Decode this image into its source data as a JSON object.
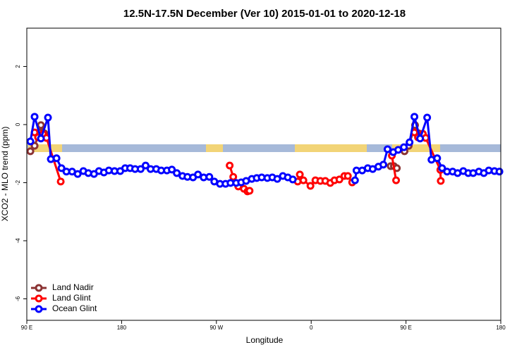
{
  "chart_data": {
    "type": "line",
    "title": "12.5N-17.5N December (Ver 10)   2015-01-01 to 2020-12-18",
    "xlabel": "Longitude",
    "ylabel": "XCO2 - MLO trend (ppm)",
    "xlim": [
      90,
      540
    ],
    "ylim": [
      -6.74,
      3.32
    ],
    "xticks": [
      {
        "value": 90,
        "label": "90 E"
      },
      180,
      {
        "value": 270,
        "label": "90 W"
      },
      {
        "value": 360,
        "label": "0"
      },
      {
        "value": 450,
        "label": "90 E"
      },
      {
        "value": 540,
        "label": "180"
      }
    ],
    "yticks": [
      -6,
      -4,
      -2,
      0,
      2
    ],
    "legend": "bottom-left",
    "series": [
      {
        "name": "Land Nadir",
        "color": "#8b3333",
        "x": [
          93.4,
          97.4,
          102,
          103.4,
          106.7,
          null,
          435.5,
          438.5,
          441.3,
          null,
          448.6,
          452.6,
          458.6,
          462
        ],
        "values": [
          -0.92,
          -0.73,
          -0.27,
          -0.02,
          -0.3,
          null,
          -1.43,
          -1.43,
          -1.5,
          null,
          -0.92,
          -0.73,
          -0.02,
          -0.3
        ]
      },
      {
        "name": "Land Glint",
        "color": "#ff0000",
        "x": [
          97.4,
          100.7,
          105.4,
          108.7,
          122.2,
          null,
          282.6,
          286,
          290.8,
          296.1,
          299.5,
          301.5,
          null,
          347.2,
          349.2,
          352.6,
          359.3,
          364,
          368.7,
          373.4,
          378.1,
          382.1,
          386.8,
          391.5,
          394.8,
          398.9,
          null,
          436.6,
          440.6,
          null,
          458,
          461.4,
          466,
          468.7,
          482.6,
          483
        ],
        "values": [
          -0.27,
          -0.44,
          -0.32,
          -0.46,
          -1.96,
          null,
          -1.41,
          -1.8,
          -2.13,
          -2.21,
          -2.3,
          -2.28,
          null,
          -1.96,
          -1.72,
          -1.92,
          -2.11,
          -1.92,
          -1.94,
          -1.94,
          -2.01,
          -1.92,
          -1.89,
          -1.77,
          -1.77,
          -1.99,
          null,
          -1.07,
          -1.92,
          null,
          -0.27,
          -0.44,
          -0.32,
          -0.46,
          -1.56,
          -1.94
        ]
      },
      {
        "name": "Ocean Glint",
        "color": "#0000ff",
        "x": [
          93.4,
          97.4,
          103.4,
          110.1,
          112.8,
          118.2,
          122.9,
          127.6,
          133,
          138.3,
          143.7,
          148.4,
          153.8,
          158.5,
          163.2,
          167.9,
          173.3,
          178.7,
          183.4,
          188.1,
          192.8,
          198.1,
          202.8,
          207.5,
          212.9,
          217.6,
          223,
          227.7,
          232.4,
          237.8,
          242.5,
          247.8,
          252.5,
          257.9,
          263.3,
          268,
          273.4,
          278.7,
          283.4,
          288.8,
          293.5,
          298.2,
          303.6,
          308.3,
          313,
          318.4,
          323.1,
          327.8,
          333.1,
          337.8,
          342.5,
          null,
          401.6,
          403,
          408.4,
          413.7,
          418.4,
          423.8,
          428.5,
          432.5,
          437.9,
          442.6,
          448,
          453.4,
          458,
          463.4,
          470.1,
          474.2,
          479.6,
          484.3,
          489,
          494.3,
          499,
          504.4,
          509.1,
          513.8,
          519.2,
          523.9,
          528.6,
          534,
          538.7
        ],
        "values": [
          -0.58,
          0.27,
          -0.48,
          0.24,
          -1.19,
          -1.16,
          -1.5,
          -1.62,
          -1.62,
          -1.7,
          -1.6,
          -1.67,
          -1.7,
          -1.6,
          -1.65,
          -1.58,
          -1.6,
          -1.6,
          -1.5,
          -1.5,
          -1.53,
          -1.53,
          -1.41,
          -1.53,
          -1.53,
          -1.58,
          -1.58,
          -1.55,
          -1.67,
          -1.77,
          -1.8,
          -1.82,
          -1.72,
          -1.82,
          -1.8,
          -1.96,
          -2.04,
          -2.04,
          -2.01,
          -2.01,
          -1.99,
          -1.94,
          -1.87,
          -1.84,
          -1.82,
          -1.84,
          -1.82,
          -1.87,
          -1.77,
          -1.82,
          -1.89,
          null,
          -1.92,
          -1.58,
          -1.58,
          -1.5,
          -1.53,
          -1.45,
          -1.38,
          -0.85,
          -0.95,
          -0.87,
          -0.78,
          -0.61,
          0.27,
          -0.48,
          0.24,
          -1.21,
          -1.16,
          -1.5,
          -1.62,
          -1.62,
          -1.67,
          -1.6,
          -1.67,
          -1.67,
          -1.62,
          -1.67,
          -1.58,
          -1.6,
          -1.62
        ]
      }
    ]
  }
}
